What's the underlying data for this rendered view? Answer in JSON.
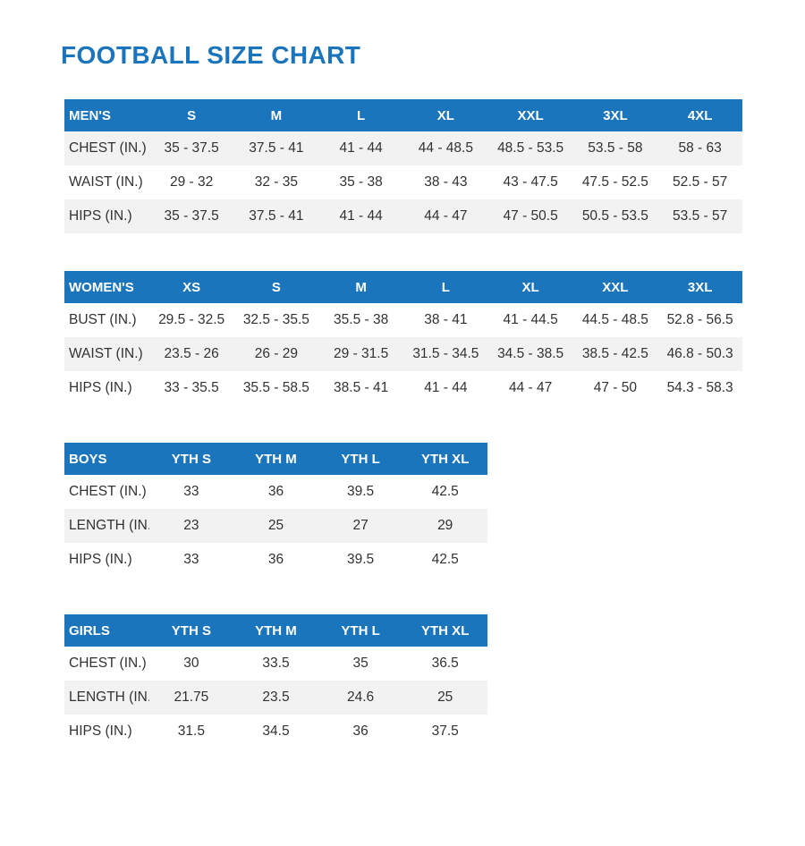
{
  "page": {
    "title": "FOOTBALL SIZE CHART"
  },
  "colors": {
    "accent_blue": "#1b75bc",
    "stripe_gray": "#f2f2f3",
    "text_dark": "#323232"
  },
  "tables": [
    {
      "id": "mens",
      "header": "MEN'S",
      "columns": [
        "S",
        "M",
        "L",
        "XL",
        "XXL",
        "3XL",
        "4XL"
      ],
      "stripe_first_row": true,
      "rows": [
        {
          "label": "CHEST (IN.)",
          "values": [
            "35 - 37.5",
            "37.5 - 41",
            "41 - 44",
            "44 - 48.5",
            "48.5 - 53.5",
            "53.5 - 58",
            "58 - 63"
          ]
        },
        {
          "label": "WAIST (IN.)",
          "values": [
            "29 - 32",
            "32 - 35",
            "35 - 38",
            "38 - 43",
            "43 - 47.5",
            "47.5 - 52.5",
            "52.5 - 57"
          ]
        },
        {
          "label": "HIPS (IN.)",
          "values": [
            "35 - 37.5",
            "37.5 - 41",
            "41 - 44",
            "44 - 47",
            "47 - 50.5",
            "50.5 - 53.5",
            "53.5 - 57"
          ]
        }
      ]
    },
    {
      "id": "womens",
      "header": "WOMEN'S",
      "columns": [
        "XS",
        "S",
        "M",
        "L",
        "XL",
        "XXL",
        "3XL"
      ],
      "stripe_first_row": false,
      "rows": [
        {
          "label": "BUST (IN.)",
          "values": [
            "29.5 - 32.5",
            "32.5 - 35.5",
            "35.5 - 38",
            "38 - 41",
            "41 - 44.5",
            "44.5 - 48.5",
            "52.8 - 56.5"
          ]
        },
        {
          "label": "WAIST (IN.)",
          "values": [
            "23.5 - 26",
            "26 - 29",
            "29 - 31.5",
            "31.5 - 34.5",
            "34.5 - 38.5",
            "38.5 - 42.5",
            "46.8 - 50.3"
          ]
        },
        {
          "label": "HIPS (IN.)",
          "values": [
            "33 - 35.5",
            "35.5 - 58.5",
            "38.5 - 41",
            "41 - 44",
            "44 - 47",
            "47 - 50",
            "54.3 - 58.3"
          ]
        }
      ]
    },
    {
      "id": "boys",
      "header": "BOYS",
      "columns": [
        "YTH S",
        "YTH M",
        "YTH L",
        "YTH XL"
      ],
      "stripe_first_row": false,
      "rows": [
        {
          "label": "CHEST (IN.)",
          "values": [
            "33",
            "36",
            "39.5",
            "42.5"
          ]
        },
        {
          "label": "LENGTH (IN.)",
          "values": [
            "23",
            "25",
            "27",
            "29"
          ]
        },
        {
          "label": "HIPS (IN.)",
          "values": [
            "33",
            "36",
            "39.5",
            "42.5"
          ]
        }
      ]
    },
    {
      "id": "girls",
      "header": "GIRLS",
      "columns": [
        "YTH S",
        "YTH M",
        "YTH L",
        "YTH XL"
      ],
      "stripe_first_row": false,
      "rows": [
        {
          "label": "CHEST (IN.)",
          "values": [
            "30",
            "33.5",
            "35",
            "36.5"
          ]
        },
        {
          "label": "LENGTH (IN.)",
          "values": [
            "21.75",
            "23.5",
            "24.6",
            "25"
          ]
        },
        {
          "label": "HIPS (IN.)",
          "values": [
            "31.5",
            "34.5",
            "36",
            "37.5"
          ]
        }
      ]
    }
  ]
}
